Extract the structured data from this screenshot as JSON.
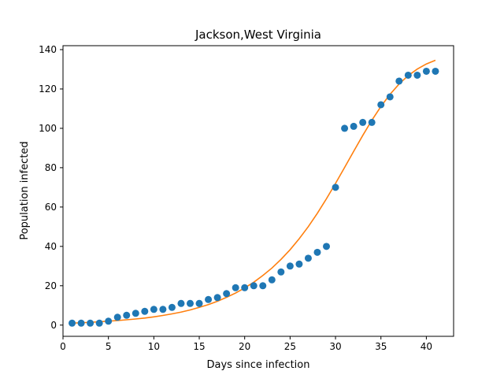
{
  "chart_data": {
    "type": "scatter",
    "title": "Jackson,West Virginia",
    "xlabel": "Days since infection",
    "ylabel": "Population infected",
    "xlim": [
      -0.0,
      43.0
    ],
    "ylim": [
      -5.7,
      142.0
    ],
    "xticks": [
      0,
      5,
      10,
      15,
      20,
      25,
      30,
      35,
      40
    ],
    "yticks": [
      0,
      20,
      40,
      60,
      80,
      100,
      120,
      140
    ],
    "grid": false,
    "colors": {
      "points": "#1f77b4",
      "fit": "#ff7f0e"
    },
    "series": [
      {
        "kind": "points",
        "x": [
          1,
          2,
          3,
          4,
          5,
          6,
          7,
          8,
          9,
          10,
          11,
          12,
          13,
          14,
          15,
          16,
          17,
          18,
          19,
          20,
          21,
          22,
          23,
          24,
          25,
          26,
          27,
          28,
          29,
          30,
          31,
          32,
          33,
          34,
          35,
          36,
          37,
          38,
          39,
          40,
          41
        ],
        "y": [
          1,
          1,
          1,
          1,
          2,
          4,
          5,
          6,
          7,
          8,
          8,
          9,
          11,
          11,
          11,
          13,
          14,
          16,
          19,
          19,
          20,
          20,
          23,
          27,
          30,
          31,
          34,
          37,
          40,
          70,
          100,
          101,
          103,
          103,
          112,
          116,
          124,
          127,
          127,
          129,
          129
        ]
      },
      {
        "kind": "fit",
        "x": [
          1,
          2,
          3,
          4,
          5,
          6,
          7,
          8,
          9,
          10,
          11,
          12,
          13,
          14,
          15,
          16,
          17,
          18,
          19,
          20,
          21,
          22,
          23,
          24,
          25,
          26,
          27,
          28,
          29,
          30,
          31,
          32,
          33,
          34,
          35,
          36,
          37,
          38,
          39,
          40,
          41
        ],
        "y": [
          1.0,
          1.2,
          1.4,
          1.7,
          2.0,
          2.3,
          2.7,
          3.1,
          3.6,
          4.2,
          4.9,
          5.7,
          6.6,
          7.7,
          9.0,
          10.4,
          12.1,
          14.1,
          16.3,
          18.9,
          21.8,
          25.2,
          29.0,
          33.4,
          38.3,
          43.9,
          50.0,
          56.8,
          64.2,
          72.0,
          80.1,
          88.3,
          96.4,
          104.1,
          111.1,
          117.3,
          122.5,
          126.8,
          130.1,
          132.7,
          134.6
        ]
      }
    ]
  }
}
